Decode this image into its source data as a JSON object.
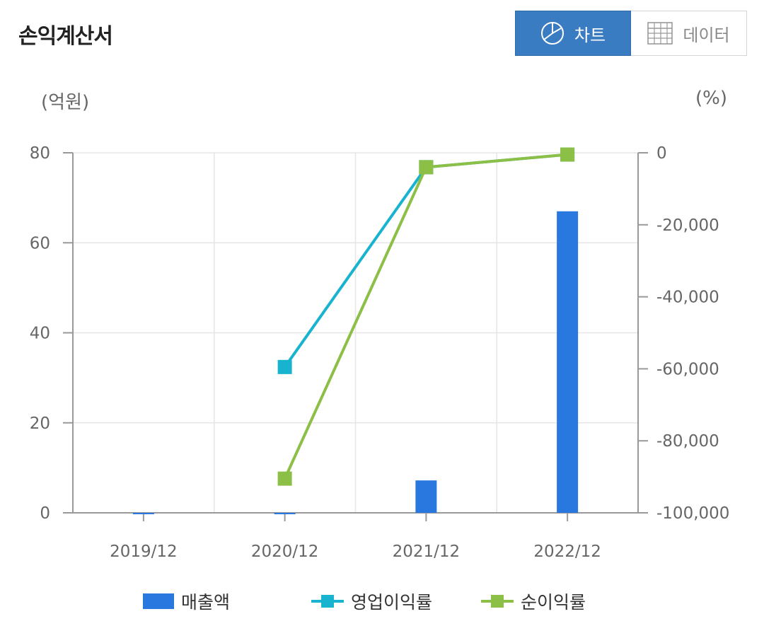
{
  "header": {
    "title": "손익계산서",
    "toggle": {
      "chart_label": "차트",
      "data_label": "데이터",
      "chart_icon": "pie-chart-icon",
      "data_icon": "table-grid-icon",
      "active": "chart"
    }
  },
  "units": {
    "left": "(억원)",
    "right": "(%)"
  },
  "colors": {
    "revenue": "#2878e0",
    "op_margin": "#17b3cf",
    "net_margin": "#8cbf46",
    "accent": "#3a7cc2"
  },
  "chart_data": {
    "type": "bar",
    "categories": [
      "2019/12",
      "2020/12",
      "2021/12",
      "2022/12"
    ],
    "y_left": {
      "ylim": [
        0,
        80
      ],
      "ticks": [
        0,
        20,
        40,
        60,
        80
      ],
      "tick_labels": [
        "0",
        "20",
        "40",
        "60",
        "80"
      ]
    },
    "y_right": {
      "ylim": [
        -100000,
        0
      ],
      "ticks": [
        0,
        -20000,
        -40000,
        -60000,
        -80000,
        -100000
      ],
      "tick_labels": [
        "0",
        "-20,000",
        "-40,000",
        "-60,000",
        "-80,000",
        "-100,000"
      ]
    },
    "series": [
      {
        "name": "매출액",
        "type": "bar",
        "axis": "left",
        "values": [
          0,
          0,
          7.2,
          67
        ]
      },
      {
        "name": "영업이익률",
        "type": "line",
        "axis": "right",
        "values": [
          null,
          -59500,
          -4000,
          -500
        ]
      },
      {
        "name": "순이익률",
        "type": "line",
        "axis": "right",
        "values": [
          null,
          -90500,
          -4000,
          -500
        ]
      }
    ],
    "grid": true,
    "legend": "bottom"
  }
}
